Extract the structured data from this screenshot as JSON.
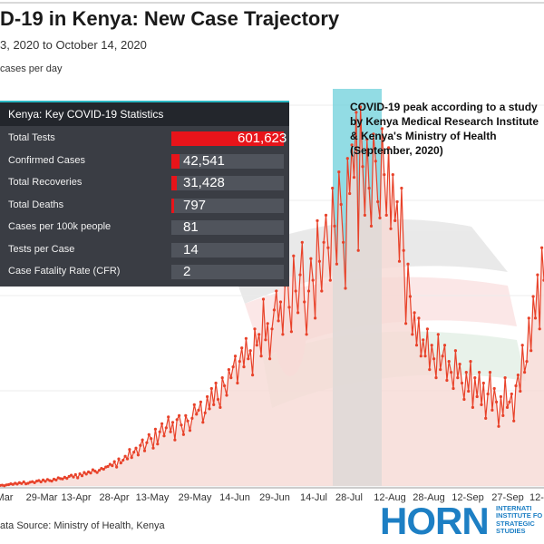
{
  "title": "D-19 in Kenya: New Case Trajectory",
  "subtitle": "3, 2020 to October 14, 2020",
  "units_label": "cases per day",
  "source": "ata Source: Ministry of Health, Kenya",
  "logo": {
    "text": "HORN",
    "sub": [
      "INTERNATI",
      "INSTITUTE FO",
      "STRATEGIC",
      "STUDIES"
    ],
    "color": "#1d7fc4"
  },
  "annotation": "COVID-19 peak according to a study by Kenya Medical Research Institute & Kenya's Ministry of Health (September, 2020)",
  "stats": {
    "title": "Kenya: Key COVID-19 Statistics",
    "rows": [
      {
        "label": "Total Tests",
        "value": "601,623",
        "fraction": 1.0
      },
      {
        "label": "Confirmed Cases",
        "value": "42,541",
        "fraction": 0.0707
      },
      {
        "label": "Total Recoveries",
        "value": "31,428",
        "fraction": 0.0522
      },
      {
        "label": "Total Deaths",
        "value": "797",
        "fraction": 0.0013
      },
      {
        "label": "Cases per 100k people",
        "value": "81",
        "fraction": 0
      },
      {
        "label": "Tests per Case",
        "value": "14",
        "fraction": 0
      },
      {
        "label": "Case Fatality Rate (CFR)",
        "value": "2",
        "fraction": 0
      }
    ]
  },
  "colors": {
    "line": "#e8422a",
    "area": "#f6d9d5",
    "highlight": "#7fd6df",
    "panel": "#3a3d44",
    "bar": "#e8141a"
  },
  "chart_data": {
    "type": "line",
    "x_ticks": [
      "Mar",
      "29-Mar",
      "13-Apr",
      "28-Apr",
      "13-May",
      "29-May",
      "14-Jun",
      "29-Jun",
      "14-Jul",
      "28-Jul",
      "12-Aug",
      "28-Aug",
      "12-Sep",
      "27-Sep",
      "12-"
    ],
    "series": [
      {
        "values": [
          2,
          3,
          1,
          4,
          5,
          8,
          6,
          10,
          7,
          12,
          9,
          15,
          8,
          10,
          14,
          16,
          12,
          18,
          20,
          15,
          22,
          17,
          24,
          20,
          18,
          25,
          22,
          30,
          27,
          26,
          32,
          28,
          35,
          40,
          33,
          42,
          30,
          45,
          38,
          50,
          44,
          52,
          48,
          60,
          55,
          50,
          58,
          65,
          62,
          70,
          72,
          80,
          75,
          90,
          70,
          100,
          85,
          95,
          110,
          100,
          135,
          105,
          125,
          140,
          115,
          150,
          170,
          130,
          160,
          190,
          175,
          140,
          210,
          155,
          200,
          230,
          185,
          215,
          255,
          200,
          235,
          170,
          245,
          260,
          225,
          190,
          260,
          240,
          205,
          250,
          300,
          265,
          280,
          310,
          235,
          270,
          330,
          285,
          360,
          300,
          380,
          320,
          290,
          400,
          370,
          335,
          430,
          400,
          440,
          480,
          380,
          460,
          510,
          440,
          545,
          470,
          500,
          410,
          580,
          520,
          560,
          480,
          690,
          540,
          600,
          470,
          580,
          650,
          720,
          610,
          680,
          560,
          740,
          800,
          660,
          570,
          850,
          720,
          640,
          780,
          900,
          680,
          560,
          720,
          840,
          760,
          620,
          980,
          830,
          720,
          900,
          1000,
          880,
          760,
          1100,
          960,
          820,
          1160,
          1040,
          900,
          730,
          1210,
          1080,
          1260,
          1140,
          1380,
          870,
          1400,
          1180,
          1000,
          1280,
          1100,
          960,
          1300,
          1200,
          1050,
          990,
          1320,
          1150,
          1000,
          1250,
          950,
          1150,
          980,
          1050,
          830,
          1100,
          870,
          600,
          820,
          700,
          560,
          640,
          520,
          620,
          480,
          540,
          480,
          580,
          430,
          520,
          470,
          400,
          560,
          430,
          480,
          520,
          390,
          460,
          420,
          360,
          500,
          400,
          450,
          380,
          320,
          420,
          350,
          460,
          290,
          400,
          330,
          420,
          300,
          380,
          250,
          340,
          420,
          280,
          360,
          310,
          220,
          330,
          260,
          400,
          290,
          310,
          340,
          240,
          370,
          410,
          350,
          520,
          420,
          460,
          620,
          500,
          700,
          620,
          780,
          580,
          880,
          760
        ]
      }
    ],
    "ylim": [
      0,
      1420
    ],
    "highlight_range": [
      "Jul-20",
      "Aug-10"
    ],
    "grid": true
  }
}
